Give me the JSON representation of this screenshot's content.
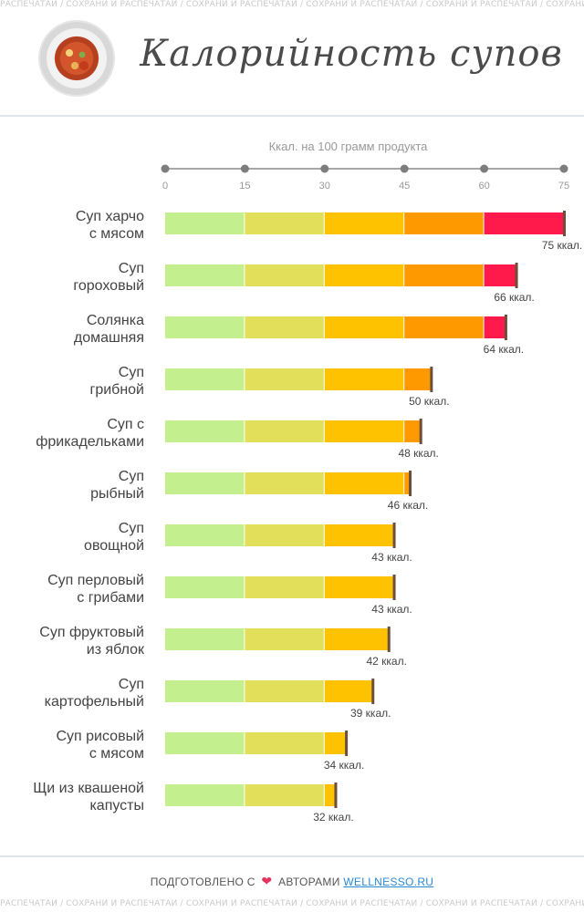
{
  "watermark": "РАСПЕЧАТАЙ / СОХРАНИ И РАСПЕЧАТАЙ / СОХРАНИ И РАСПЕЧАТАЙ / СОХРАНИ И РАСПЕЧАТАЙ / СОХРАНИ И РАСПЕЧАТАЙ / СОХРАНИ И РАСПЕЧАТАЙ / СОХРАНИ И РАСПЕЧАТАЙ / СОХРАНИ И РАСПЕЧАТАЙ",
  "title": "Калорийность супов",
  "footer": {
    "prefix": "ПОДГОТОВЛЕНО С",
    "middle": "АВТОРАМИ",
    "link": "WELLNESSO.RU"
  },
  "colors": {
    "segments": [
      "#c4ef8e",
      "#e2e05a",
      "#ffc200",
      "#ff9900",
      "#ff1a4b"
    ],
    "axis": "#8a8a8a",
    "cap": "#6b4f3a"
  },
  "chart_data": {
    "type": "bar",
    "orientation": "horizontal",
    "title": "Ккал. на 100 грамм продукта",
    "xlim": [
      0,
      75
    ],
    "ticks": [
      0,
      15,
      30,
      45,
      60,
      75
    ],
    "unit": "ккал.",
    "categories": [
      [
        "Суп харчо",
        "с мясом"
      ],
      [
        "Суп",
        "гороховый"
      ],
      [
        "Солянка",
        "домашняя"
      ],
      [
        "Суп",
        "грибной"
      ],
      [
        "Суп с",
        "фрикадельками"
      ],
      [
        "Суп",
        "рыбный"
      ],
      [
        "Суп",
        "овощной"
      ],
      [
        "Суп перловый",
        "с грибами"
      ],
      [
        "Суп фруктовый",
        "из яблок"
      ],
      [
        "Суп",
        "картофельный"
      ],
      [
        "Суп рисовый",
        "с мясом"
      ],
      [
        "Щи из квашеной",
        "капусты"
      ]
    ],
    "values": [
      75,
      66,
      64,
      50,
      48,
      46,
      43,
      43,
      42,
      39,
      34,
      32
    ]
  }
}
